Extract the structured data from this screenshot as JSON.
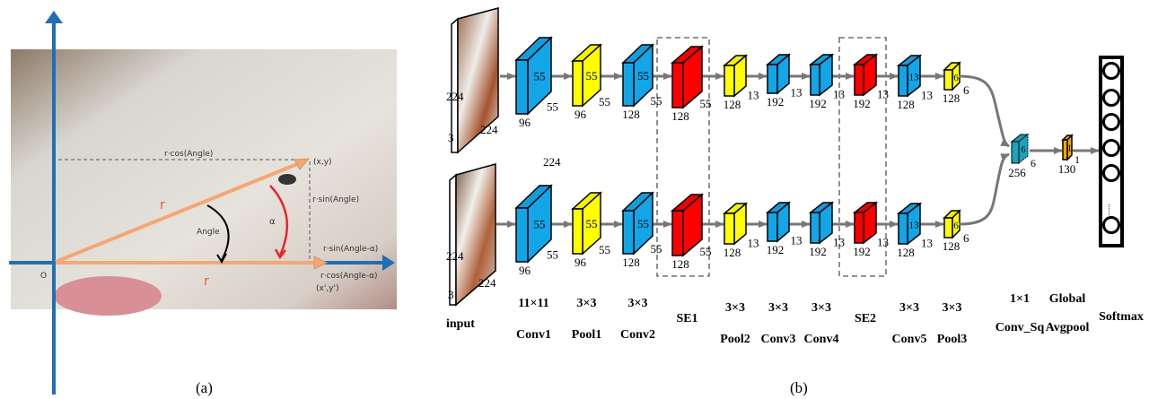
{
  "panel_a": {
    "caption": "(a)",
    "origin": "O",
    "point": "(x,y)",
    "point_rotated": "(x',y')",
    "r_cos_angle": "r·cos(Angle)",
    "r_sin_angle": "r·sin(Angle)",
    "r_sin_angle_alpha": "r·sin(Angle-α)",
    "r_cos_angle_alpha": "r·cos(Angle-α)",
    "angle": "Angle",
    "alpha": "α",
    "radius_top": "r",
    "radius_bottom": "r",
    "colors": {
      "axis": "#1f6fb5",
      "radius": "#f4a774",
      "rotation": "#e8252a",
      "radius_label": "#ff4b3a"
    }
  },
  "panel_b": {
    "caption": "(b)",
    "input": {
      "label": "input",
      "height": "224",
      "channels": "3",
      "width": "224",
      "extra": "224"
    },
    "layers": [
      {
        "name": "Conv1",
        "kernel": "11×11",
        "face": "55",
        "side": "55",
        "depth": "96",
        "type": "conv"
      },
      {
        "name": "Pool1",
        "kernel": "3×3",
        "face": "55",
        "side": "55",
        "depth": "96",
        "type": "pool"
      },
      {
        "name": "Conv2",
        "kernel": "3×3",
        "face": "55",
        "side": "55",
        "depth": "128",
        "type": "conv"
      },
      {
        "name": "SE1",
        "kernel": "",
        "face": "",
        "side": "55",
        "depth": "128",
        "type": "se"
      },
      {
        "name": "Pool2",
        "kernel": "3×3",
        "face": "",
        "side": "13",
        "depth": "128",
        "type": "pool"
      },
      {
        "name": "Conv3",
        "kernel": "3×3",
        "face": "",
        "side": "13",
        "depth": "192",
        "type": "conv"
      },
      {
        "name": "Conv4",
        "kernel": "3×3",
        "face": "",
        "side": "13",
        "depth": "192",
        "type": "conv"
      },
      {
        "name": "SE2",
        "kernel": "",
        "face": "",
        "side": "13",
        "depth": "192",
        "type": "se"
      },
      {
        "name": "Conv5",
        "kernel": "3×3",
        "face": "13",
        "side": "13",
        "depth": "128",
        "type": "conv"
      },
      {
        "name": "Pool3",
        "kernel": "3×3",
        "face": "6",
        "side": "6",
        "depth": "128",
        "type": "pool"
      }
    ],
    "merge_layers": [
      {
        "name": "Conv_Sq",
        "kernel": "1×1",
        "face": "6",
        "side": "6",
        "depth": "256",
        "type": "sq"
      },
      {
        "name": "Avgpool",
        "kernel": "Global",
        "face": "1",
        "side": "1",
        "depth": "130",
        "type": "gap"
      }
    ],
    "softmax": {
      "label": "Softmax",
      "ellipsis": "......"
    },
    "colors": {
      "conv": "#12a5e8",
      "pool": "#ffff00",
      "se": "#ff0000",
      "sq": "#1aa3bf",
      "gap": "#f5a800",
      "arrow": "#777777",
      "dashed_box": "#555555"
    }
  }
}
